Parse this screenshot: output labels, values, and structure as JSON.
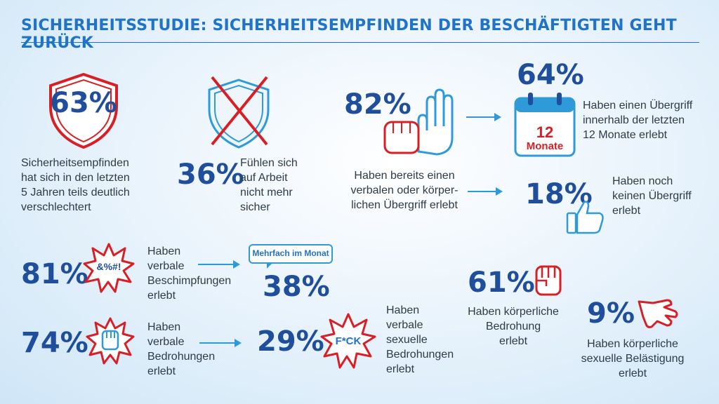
{
  "header": {
    "title": "SICHERHEITSSTUDIE: SICHERHEITSEMPFINDEN DER BESCHÄFTIGTEN GEHT ZURÜCK"
  },
  "colors": {
    "accent": "#1f73c8",
    "dark_blue": "#1f4e9c",
    "red": "#d81f26",
    "light_blue": "#2f9ad8"
  },
  "stats": {
    "s63": {
      "value": "63%",
      "text": [
        "Sicherheitsempfinden",
        "hat sich in den letzten",
        "5 Jahren teils deutlich",
        "verschlechtert"
      ],
      "icon": "shield-icon"
    },
    "s36": {
      "value": "36%",
      "text": [
        "Fühlen sich",
        "auf Arbeit",
        "nicht mehr",
        "sicher"
      ],
      "icon": "shield-crossed-icon"
    },
    "s82": {
      "value": "82%",
      "text": [
        "Haben bereits einen",
        "verbalen oder körper-",
        "lichen Übergriff erlebt"
      ],
      "icon": "hands-icon"
    },
    "s64": {
      "value": "64%",
      "text": [
        "Haben einen Übergriff",
        "innerhalb der letzten",
        "12 Monate erlebt"
      ],
      "icon": "calendar-icon",
      "calendar_number": "12",
      "calendar_label": "Monate"
    },
    "s18": {
      "value": "18%",
      "text": [
        "Haben noch",
        "keinen Übergriff",
        "erlebt"
      ],
      "icon": "thumbs-up-icon"
    },
    "s81": {
      "value": "81%",
      "text": [
        "Haben",
        "verbale",
        "Beschimpfungen",
        "erlebt"
      ],
      "icon": "explosion-icon",
      "icon_text": "&%#!"
    },
    "s38": {
      "value": "38%",
      "bubble": "Mehrfach im Monat",
      "icon": "speech-bubble-icon"
    },
    "s74": {
      "value": "74%",
      "text": [
        "Haben",
        "verbale",
        "Bedrohungen",
        "erlebt"
      ],
      "icon": "fist-burst-icon"
    },
    "s29": {
      "value": "29%",
      "icon": "explosion-icon",
      "icon_text": "F*CK"
    },
    "sexual_threat": {
      "text": [
        "Haben",
        "verbale",
        "sexuelle",
        "Bedrohungen",
        "erlebt"
      ]
    },
    "s61": {
      "value": "61%",
      "text": [
        "Haben körperliche",
        "Bedrohung",
        "erlebt"
      ],
      "icon": "fist-icon"
    },
    "s9": {
      "value": "9%",
      "text": [
        "Haben körperliche",
        "sexuelle Belästigung",
        "erlebt"
      ],
      "icon": "grab-hand-icon"
    }
  }
}
